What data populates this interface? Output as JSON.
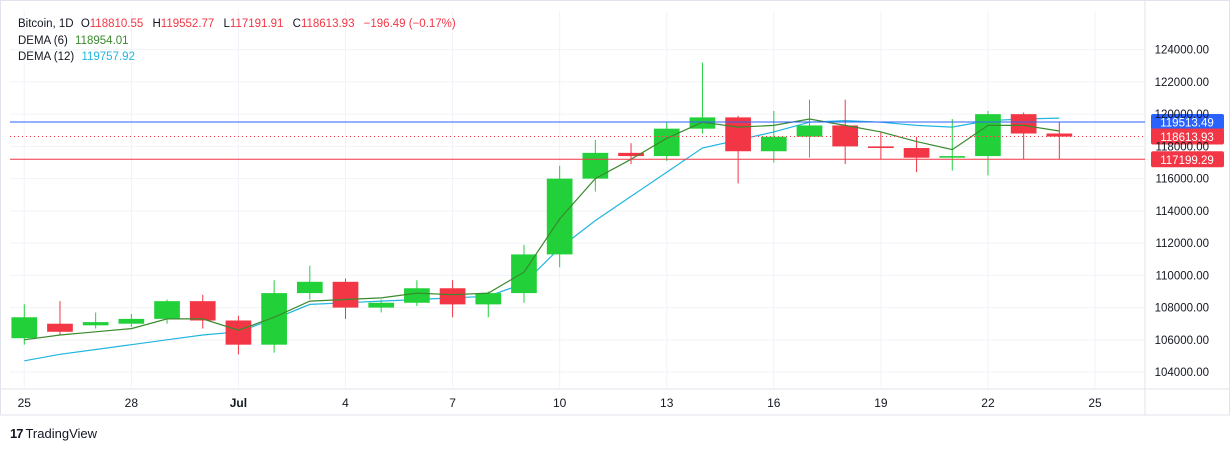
{
  "legend": {
    "symbol": "Bitcoin, 1D",
    "open_key": "O",
    "open": "118810.55",
    "high_key": "H",
    "high": "119552.77",
    "low_key": "L",
    "low": "117191.91",
    "close_key": "C",
    "close": "118613.93",
    "change": "−196.49 (−0.17%)",
    "dema6_label": "DEMA (6)",
    "dema6_value": "118954.01",
    "dema12_label": "DEMA (12)",
    "dema12_value": "119757.92"
  },
  "brand": {
    "logo": "17",
    "name": "TradingView"
  },
  "colors": {
    "up": "#22d13a",
    "down": "#f23645",
    "dema6": "#3a8a2e",
    "dema12": "#22b5e0",
    "blue_line": "#2962ff",
    "grid": "#f0f3fa",
    "axis_text": "#131722"
  },
  "chart_data": {
    "type": "candlestick",
    "y_ticks": [
      "104000.00",
      "106000.00",
      "108000.00",
      "110000.00",
      "112000.00",
      "114000.00",
      "116000.00",
      "118000.00",
      "120000.00",
      "122000.00",
      "124000.00"
    ],
    "x_ticks": [
      {
        "label": "25",
        "day": 0
      },
      {
        "label": "28",
        "day": 3
      },
      {
        "label": "Jul",
        "day": 6
      },
      {
        "label": "4",
        "day": 9
      },
      {
        "label": "7",
        "day": 12
      },
      {
        "label": "10",
        "day": 15
      },
      {
        "label": "13",
        "day": 18
      },
      {
        "label": "16",
        "day": 21
      },
      {
        "label": "19",
        "day": 24
      },
      {
        "label": "22",
        "day": 27
      },
      {
        "label": "25",
        "day": 30
      }
    ],
    "ylim": [
      102950,
      126400
    ],
    "xlim": [
      -0.4,
      31.4
    ],
    "candles": [
      {
        "o": 106100,
        "h": 108200,
        "l": 105700,
        "c": 107400
      },
      {
        "o": 107000,
        "h": 108400,
        "l": 106300,
        "c": 106500
      },
      {
        "o": 106900,
        "h": 107700,
        "l": 106700,
        "c": 107100
      },
      {
        "o": 107000,
        "h": 107600,
        "l": 106800,
        "c": 107300
      },
      {
        "o": 107300,
        "h": 108500,
        "l": 107000,
        "c": 108400
      },
      {
        "o": 108400,
        "h": 108800,
        "l": 106700,
        "c": 107200
      },
      {
        "o": 107200,
        "h": 107500,
        "l": 105100,
        "c": 105700
      },
      {
        "o": 105700,
        "h": 109700,
        "l": 105200,
        "c": 108900
      },
      {
        "o": 108900,
        "h": 110600,
        "l": 108500,
        "c": 109600
      },
      {
        "o": 109600,
        "h": 109800,
        "l": 107300,
        "c": 108000
      },
      {
        "o": 108000,
        "h": 108500,
        "l": 107700,
        "c": 108300
      },
      {
        "o": 108300,
        "h": 109700,
        "l": 108100,
        "c": 109200
      },
      {
        "o": 109200,
        "h": 109700,
        "l": 107400,
        "c": 108200
      },
      {
        "o": 108200,
        "h": 109000,
        "l": 107400,
        "c": 108900
      },
      {
        "o": 108900,
        "h": 111900,
        "l": 108300,
        "c": 111300
      },
      {
        "o": 111300,
        "h": 116800,
        "l": 110500,
        "c": 116000
      },
      {
        "o": 116000,
        "h": 118400,
        "l": 115200,
        "c": 117600
      },
      {
        "o": 117600,
        "h": 118200,
        "l": 116900,
        "c": 117400
      },
      {
        "o": 117400,
        "h": 119500,
        "l": 117100,
        "c": 119100
      },
      {
        "o": 119100,
        "h": 123200,
        "l": 118800,
        "c": 119800
      },
      {
        "o": 119800,
        "h": 119900,
        "l": 115700,
        "c": 117700
      },
      {
        "o": 117700,
        "h": 120200,
        "l": 117000,
        "c": 118600
      },
      {
        "o": 118600,
        "h": 120900,
        "l": 117300,
        "c": 119300
      },
      {
        "o": 119300,
        "h": 120900,
        "l": 116900,
        "c": 118000
      },
      {
        "o": 118000,
        "h": 118900,
        "l": 117200,
        "c": 117900
      },
      {
        "o": 117900,
        "h": 118600,
        "l": 116400,
        "c": 117300
      },
      {
        "o": 117300,
        "h": 119700,
        "l": 116500,
        "c": 117400
      },
      {
        "o": 117400,
        "h": 120200,
        "l": 116200,
        "c": 120000
      },
      {
        "o": 120000,
        "h": 120100,
        "l": 117200,
        "c": 118800
      },
      {
        "o": 118800,
        "h": 119550,
        "l": 117190,
        "c": 118610
      }
    ],
    "dema6": [
      106000,
      106300,
      106500,
      106700,
      107300,
      107300,
      106600,
      107400,
      108400,
      108500,
      108600,
      108900,
      108800,
      108900,
      110200,
      113500,
      116000,
      117200,
      118500,
      119500,
      119200,
      119300,
      119700,
      119300,
      118900,
      118300,
      117800,
      119300,
      119300,
      118954
    ],
    "dema12": [
      104700,
      105100,
      105400,
      105700,
      106000,
      106300,
      106500,
      107300,
      108200,
      108300,
      108400,
      108500,
      108600,
      108700,
      109500,
      111700,
      113400,
      114900,
      116400,
      117900,
      118400,
      118900,
      119500,
      119600,
      119500,
      119300,
      119200,
      119600,
      119700,
      119758
    ],
    "price_lines": [
      {
        "value": 119513.49,
        "label": "119513.49",
        "style": "blue"
      },
      {
        "value": 118613.93,
        "label": "118613.93",
        "style": "red-dotted"
      },
      {
        "value": 117199.29,
        "label": "117199.29",
        "style": "red"
      }
    ]
  }
}
